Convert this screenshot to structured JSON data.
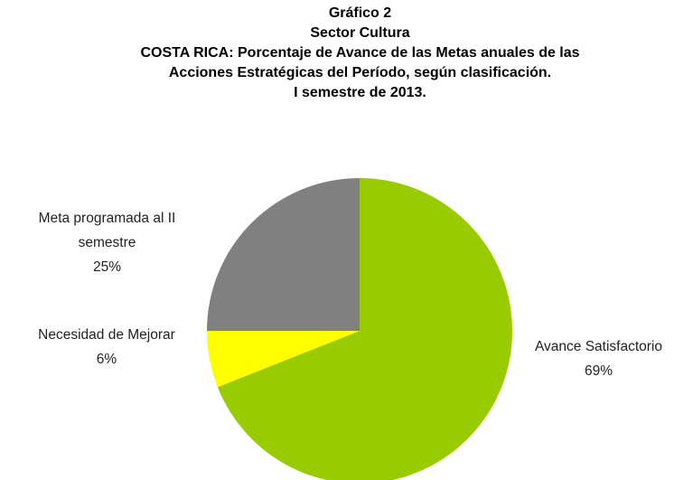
{
  "chart_data": {
    "type": "pie",
    "title": [
      "Gráfico 2",
      "Sector Cultura",
      "COSTA RICA: Porcentaje de Avance de las Metas anuales de las",
      "Acciones Estratégicas del Período, según clasificación.",
      "I semestre de 2013."
    ],
    "categories": [
      "Avance Satisfactorio",
      "Necesidad de Mejorar",
      "Meta programada al II semestre"
    ],
    "values": [
      69,
      6,
      25
    ],
    "value_labels": [
      "69%",
      "6%",
      "25%"
    ],
    "colors": [
      "#99cc00",
      "#ffff00",
      "#808080"
    ]
  }
}
